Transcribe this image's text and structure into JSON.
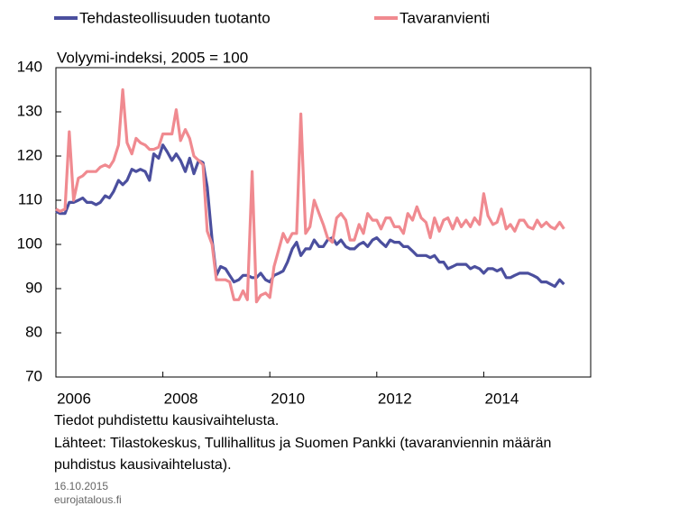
{
  "chart_data": {
    "type": "line",
    "subtitle": "Volyymi-indeksi, 2005 = 100",
    "notes": [
      "Tiedot puhdistettu kausivaihtelusta.",
      "Lähteet: Tilastokeskus, Tullihallitus ja Suomen Pankki (tavaranviennin  määrän",
      "puhdistus kausivaihtelusta)."
    ],
    "date": "16.10.2015",
    "source": "eurojatalous.fi",
    "xlim": [
      2006,
      2016
    ],
    "xticks": [
      2006,
      2008,
      2010,
      2012,
      2014
    ],
    "ylim": [
      70,
      140
    ],
    "yticks": [
      70,
      80,
      90,
      100,
      110,
      120,
      130,
      140
    ],
    "grid": false,
    "x": [
      2006.0,
      2006.08,
      2006.17,
      2006.25,
      2006.33,
      2006.42,
      2006.5,
      2006.58,
      2006.67,
      2006.75,
      2006.83,
      2006.92,
      2007.0,
      2007.08,
      2007.17,
      2007.25,
      2007.33,
      2007.42,
      2007.5,
      2007.58,
      2007.67,
      2007.75,
      2007.83,
      2007.92,
      2008.0,
      2008.08,
      2008.17,
      2008.25,
      2008.33,
      2008.42,
      2008.5,
      2008.58,
      2008.67,
      2008.75,
      2008.83,
      2008.92,
      2009.0,
      2009.08,
      2009.17,
      2009.25,
      2009.33,
      2009.42,
      2009.5,
      2009.58,
      2009.67,
      2009.75,
      2009.83,
      2009.92,
      2010.0,
      2010.08,
      2010.17,
      2010.25,
      2010.33,
      2010.42,
      2010.5,
      2010.58,
      2010.67,
      2010.75,
      2010.83,
      2010.92,
      2011.0,
      2011.08,
      2011.17,
      2011.25,
      2011.33,
      2011.42,
      2011.5,
      2011.58,
      2011.67,
      2011.75,
      2011.83,
      2011.92,
      2012.0,
      2012.08,
      2012.17,
      2012.25,
      2012.33,
      2012.42,
      2012.5,
      2012.58,
      2012.67,
      2012.75,
      2012.83,
      2012.92,
      2013.0,
      2013.08,
      2013.17,
      2013.25,
      2013.33,
      2013.42,
      2013.5,
      2013.58,
      2013.67,
      2013.75,
      2013.83,
      2013.92,
      2014.0,
      2014.08,
      2014.17,
      2014.25,
      2014.33,
      2014.42,
      2014.5,
      2014.58,
      2014.67,
      2014.75,
      2014.83,
      2014.92,
      2015.0,
      2015.08,
      2015.17,
      2015.25,
      2015.33,
      2015.42,
      2015.5
    ],
    "series": [
      {
        "name": "Tehdasteollisuuden tuotanto",
        "color": "#4b4f9e",
        "values": [
          107.5,
          107,
          107,
          109.5,
          109.5,
          110,
          110.5,
          109.5,
          109.5,
          109,
          109.5,
          111,
          110.5,
          112,
          114.5,
          113.5,
          114.5,
          117,
          116.5,
          117,
          116.5,
          114.5,
          120.5,
          119.5,
          122.5,
          121,
          119,
          120.5,
          119,
          116.5,
          119.5,
          116,
          119,
          118.5,
          113,
          101,
          93,
          95,
          94.5,
          93,
          91.5,
          92,
          93,
          93,
          92.5,
          92.5,
          93.5,
          92,
          91.5,
          93,
          93.5,
          94,
          96,
          99,
          100.5,
          97.5,
          99,
          99,
          101,
          99.5,
          99.5,
          101,
          101.5,
          100,
          101,
          99.5,
          99,
          99,
          100,
          100.5,
          99.5,
          101,
          101.5,
          100.5,
          99.5,
          101,
          100.5,
          100.5,
          99.5,
          99.5,
          98.5,
          97.5,
          97.5,
          97.5,
          97,
          97.5,
          96,
          96,
          94.5,
          95,
          95.5,
          95.5,
          95.5,
          94.5,
          95,
          94.5,
          93.5,
          94.5,
          94.5,
          94,
          94.5,
          92.5,
          92.5,
          93,
          93.5,
          93.5,
          93.5,
          93,
          92.5,
          91.5,
          91.5,
          91,
          90.5,
          92,
          91
        ]
      },
      {
        "name": "Tavaranvienti",
        "color": "#f08a90",
        "values": [
          108,
          107.5,
          108,
          125.5,
          110,
          115,
          115.5,
          116.5,
          116.5,
          116.5,
          117.5,
          118,
          117.5,
          119,
          122.5,
          135,
          123,
          120.5,
          124,
          123,
          122.5,
          121.5,
          121.5,
          122,
          125,
          125,
          125,
          130.5,
          123.5,
          126,
          124,
          120,
          119,
          118,
          103,
          100,
          92,
          92,
          92,
          91.5,
          87.5,
          87.5,
          89.5,
          87.5,
          116.5,
          87,
          88.5,
          89,
          88,
          95,
          99,
          102.5,
          100.5,
          102.5,
          102.5,
          129.5,
          102.5,
          104,
          110,
          107,
          104.5,
          101.5,
          100.5,
          106,
          107,
          105.5,
          101,
          101,
          104.5,
          102.5,
          107,
          105.5,
          105.5,
          103.5,
          106,
          106,
          104,
          104,
          102.5,
          107,
          105.5,
          108.5,
          106,
          105,
          101.5,
          106,
          103,
          105.5,
          106,
          103.5,
          106,
          104,
          105.5,
          104,
          106,
          104.5,
          111.5,
          106.5,
          104.5,
          105,
          108,
          103.5,
          104.5,
          103,
          105.5,
          105.5,
          104,
          103.5,
          105.5,
          104,
          105,
          104,
          103.5,
          105,
          103.5
        ]
      }
    ]
  }
}
